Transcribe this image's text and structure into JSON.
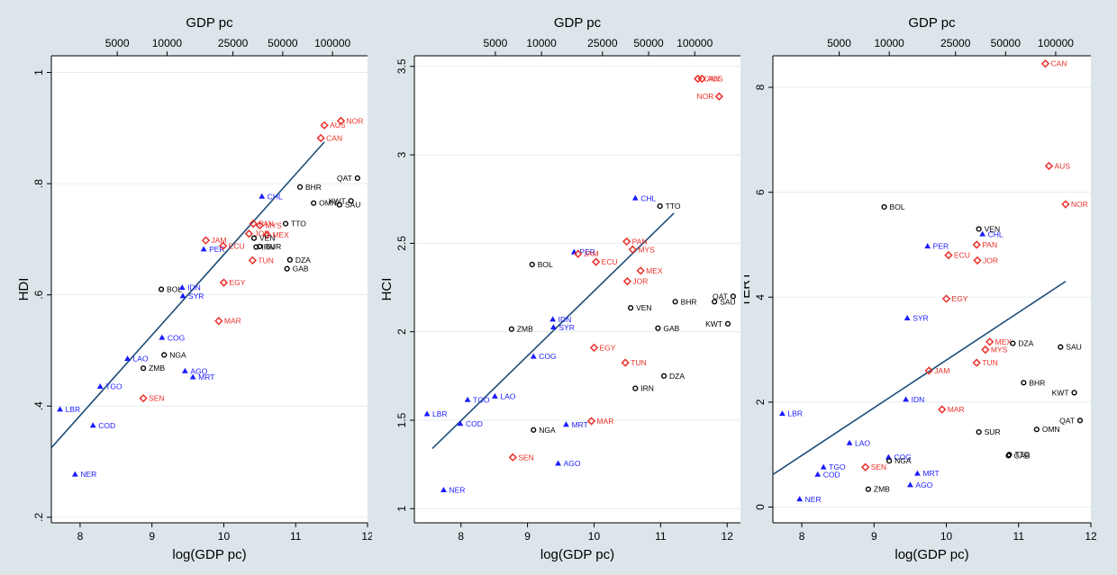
{
  "colors": {
    "group_triangle": "#1a1aff",
    "group_diamond": "#e8312a",
    "group_circle": "#000000",
    "fit_line": "#1f4e79",
    "panel_bg": "#ffffff",
    "frame_bg": "#dce6ea"
  },
  "chart_data": [
    {
      "type": "scatter",
      "xlabel": "log(GDP pc)",
      "ylabel": "HDI",
      "top_xlabel": "GDP pc",
      "xlim": [
        7.6,
        12
      ],
      "ylim": [
        0.19,
        1.03
      ],
      "xticks": [
        "8",
        "9",
        "10",
        "11",
        "12"
      ],
      "xtick_values": [
        8,
        9,
        10,
        11,
        12
      ],
      "yticks": [
        ".2",
        ".4",
        ".6",
        ".8",
        "1"
      ],
      "ytick_values": [
        0.2,
        0.4,
        0.6,
        0.8,
        1.0
      ],
      "top_ticks": [
        "5000",
        "10000",
        "25000",
        "50000",
        "100000"
      ],
      "top_tick_values": [
        8.517,
        9.21,
        10.127,
        10.82,
        11.513
      ],
      "fit": {
        "x": [
          7.6,
          11.4
        ],
        "y": [
          0.325,
          0.875
        ]
      },
      "series": [
        {
          "marker": "triangle",
          "points": [
            {
              "label": "LBR",
              "x": 7.72,
              "y": 0.394
            },
            {
              "label": "COD",
              "x": 8.18,
              "y": 0.365
            },
            {
              "label": "NER",
              "x": 7.93,
              "y": 0.277
            },
            {
              "label": "TGO",
              "x": 8.28,
              "y": 0.435
            },
            {
              "label": "LAO",
              "x": 8.66,
              "y": 0.485
            },
            {
              "label": "COG",
              "x": 9.14,
              "y": 0.523
            },
            {
              "label": "AGO",
              "x": 9.46,
              "y": 0.463
            },
            {
              "label": "MRT",
              "x": 9.57,
              "y": 0.452
            },
            {
              "label": "IDN",
              "x": 9.42,
              "y": 0.613
            },
            {
              "label": "SYR",
              "x": 9.43,
              "y": 0.598
            },
            {
              "label": "PER",
              "x": 9.72,
              "y": 0.682
            },
            {
              "label": "CHL",
              "x": 10.53,
              "y": 0.777
            }
          ]
        },
        {
          "marker": "diamond",
          "points": [
            {
              "label": "SEN",
              "x": 8.88,
              "y": 0.414
            },
            {
              "label": "MAR",
              "x": 9.93,
              "y": 0.553
            },
            {
              "label": "EGY",
              "x": 10.0,
              "y": 0.622
            },
            {
              "label": "JAM",
              "x": 9.75,
              "y": 0.698
            },
            {
              "label": "ECU",
              "x": 9.99,
              "y": 0.688
            },
            {
              "label": "TUN",
              "x": 10.4,
              "y": 0.662
            },
            {
              "label": "PAN",
              "x": 10.41,
              "y": 0.728
            },
            {
              "label": "JOR",
              "x": 10.35,
              "y": 0.71
            },
            {
              "label": "MEX",
              "x": 10.6,
              "y": 0.708
            },
            {
              "label": "MYS",
              "x": 10.5,
              "y": 0.725
            },
            {
              "label": "CAN",
              "x": 11.35,
              "y": 0.882
            },
            {
              "label": "AUS",
              "x": 11.4,
              "y": 0.905
            },
            {
              "label": "NOR",
              "x": 11.63,
              "y": 0.913
            }
          ]
        },
        {
          "marker": "circle",
          "points": [
            {
              "label": "BOL",
              "x": 9.13,
              "y": 0.61
            },
            {
              "label": "NGA",
              "x": 9.17,
              "y": 0.492
            },
            {
              "label": "ZMB",
              "x": 8.88,
              "y": 0.468
            },
            {
              "label": "VEN",
              "x": 10.42,
              "y": 0.702
            },
            {
              "label": "SUR",
              "x": 10.5,
              "y": 0.687
            },
            {
              "label": "IRN",
              "x": 10.45,
              "y": 0.686
            },
            {
              "label": "TTO",
              "x": 10.86,
              "y": 0.728
            },
            {
              "label": "DZA",
              "x": 10.92,
              "y": 0.663
            },
            {
              "label": "GAB",
              "x": 10.88,
              "y": 0.647
            },
            {
              "label": "BHR",
              "x": 11.06,
              "y": 0.794
            },
            {
              "label": "OMN",
              "x": 11.25,
              "y": 0.765
            },
            {
              "label": "SAU",
              "x": 11.61,
              "y": 0.762
            },
            {
              "label": "KWT",
              "x": 11.77,
              "y": 0.769
            },
            {
              "label": "QAT",
              "x": 11.86,
              "y": 0.81
            }
          ]
        }
      ]
    },
    {
      "type": "scatter",
      "xlabel": "log(GDP pc)",
      "ylabel": "HCI",
      "top_xlabel": "GDP pc",
      "xlim": [
        7.3,
        12.2
      ],
      "ylim": [
        0.92,
        3.56
      ],
      "xticks": [
        "8",
        "9",
        "10",
        "11",
        "12"
      ],
      "xtick_values": [
        8,
        9,
        10,
        11,
        12
      ],
      "yticks": [
        "1",
        "1.5",
        "2",
        "2.5",
        "3",
        "3.5"
      ],
      "ytick_values": [
        1.0,
        1.5,
        2.0,
        2.5,
        3.0,
        3.5
      ],
      "top_ticks": [
        "5000",
        "10000",
        "25000",
        "50000",
        "100000"
      ],
      "top_tick_values": [
        8.517,
        9.21,
        10.127,
        10.82,
        11.513
      ],
      "fit": {
        "x": [
          7.57,
          11.2
        ],
        "y": [
          1.34,
          2.67
        ]
      },
      "series": [
        {
          "marker": "triangle",
          "points": [
            {
              "label": "LBR",
              "x": 7.49,
              "y": 1.535
            },
            {
              "label": "COD",
              "x": 7.99,
              "y": 1.48
            },
            {
              "label": "NER",
              "x": 7.74,
              "y": 1.105
            },
            {
              "label": "TGO",
              "x": 8.1,
              "y": 1.615
            },
            {
              "label": "LAO",
              "x": 8.51,
              "y": 1.635
            },
            {
              "label": "COG",
              "x": 9.09,
              "y": 1.86
            },
            {
              "label": "IDN",
              "x": 9.38,
              "y": 2.07
            },
            {
              "label": "SYR",
              "x": 9.39,
              "y": 2.025
            },
            {
              "label": "PER",
              "x": 9.7,
              "y": 2.45
            },
            {
              "label": "MRT",
              "x": 9.58,
              "y": 1.475
            },
            {
              "label": "AGO",
              "x": 9.46,
              "y": 1.255
            },
            {
              "label": "CHL",
              "x": 10.62,
              "y": 2.755
            }
          ]
        },
        {
          "marker": "diamond",
          "points": [
            {
              "label": "SEN",
              "x": 8.78,
              "y": 1.29
            },
            {
              "label": "MAR",
              "x": 9.96,
              "y": 1.495
            },
            {
              "label": "EGY",
              "x": 10.0,
              "y": 1.91
            },
            {
              "label": "TUN",
              "x": 10.47,
              "y": 1.825
            },
            {
              "label": "ECU",
              "x": 10.03,
              "y": 2.395
            },
            {
              "label": "JAM",
              "x": 9.76,
              "y": 2.44
            },
            {
              "label": "PAN",
              "x": 10.49,
              "y": 2.51
            },
            {
              "label": "MYS",
              "x": 10.58,
              "y": 2.465
            },
            {
              "label": "MEX",
              "x": 10.7,
              "y": 2.345
            },
            {
              "label": "JOR",
              "x": 10.5,
              "y": 2.285
            },
            {
              "label": "CAN",
              "x": 11.56,
              "y": 3.43
            },
            {
              "label": "AUS",
              "x": 11.62,
              "y": 3.43
            },
            {
              "label": "NOR",
              "x": 11.88,
              "y": 3.33
            }
          ]
        },
        {
          "marker": "circle",
          "points": [
            {
              "label": "BOL",
              "x": 9.07,
              "y": 2.38
            },
            {
              "label": "ZMB",
              "x": 8.76,
              "y": 2.015
            },
            {
              "label": "NGA",
              "x": 9.09,
              "y": 1.445
            },
            {
              "label": "VEN",
              "x": 10.55,
              "y": 2.135
            },
            {
              "label": "BHR",
              "x": 11.22,
              "y": 2.17
            },
            {
              "label": "SAU",
              "x": 11.81,
              "y": 2.17
            },
            {
              "label": "KWT",
              "x": 12.01,
              "y": 2.045
            },
            {
              "label": "QAT",
              "x": 12.09,
              "y": 2.2
            },
            {
              "label": "GAB",
              "x": 10.96,
              "y": 2.02
            },
            {
              "label": "DZA",
              "x": 11.05,
              "y": 1.75
            },
            {
              "label": "IRN",
              "x": 10.62,
              "y": 1.68
            },
            {
              "label": "TTO",
              "x": 10.99,
              "y": 2.71
            }
          ]
        }
      ]
    },
    {
      "type": "scatter",
      "xlabel": "log(GDP pc)",
      "ylabel": "TERT",
      "top_xlabel": "GDP pc",
      "xlim": [
        7.6,
        12
      ],
      "ylim": [
        -0.3,
        8.6
      ],
      "xticks": [
        "8",
        "9",
        "10",
        "11",
        "12"
      ],
      "xtick_values": [
        8,
        9,
        10,
        11,
        12
      ],
      "yticks": [
        "0",
        "2",
        "4",
        "6",
        "8"
      ],
      "ytick_values": [
        0,
        2,
        4,
        6,
        8
      ],
      "top_ticks": [
        "5000",
        "10000",
        "25000",
        "50000",
        "100000"
      ],
      "top_tick_values": [
        8.517,
        9.21,
        10.127,
        10.82,
        11.513
      ],
      "fit": {
        "x": [
          7.6,
          11.65
        ],
        "y": [
          0.62,
          4.3
        ]
      },
      "series": [
        {
          "marker": "triangle",
          "points": [
            {
              "label": "LBR",
              "x": 7.73,
              "y": 1.78
            },
            {
              "label": "NER",
              "x": 7.97,
              "y": 0.15
            },
            {
              "label": "COD",
              "x": 8.22,
              "y": 0.62
            },
            {
              "label": "TGO",
              "x": 8.3,
              "y": 0.76
            },
            {
              "label": "LAO",
              "x": 8.66,
              "y": 1.22
            },
            {
              "label": "COG",
              "x": 9.2,
              "y": 0.95
            },
            {
              "label": "AGO",
              "x": 9.5,
              "y": 0.42
            },
            {
              "label": "MRT",
              "x": 9.6,
              "y": 0.64
            },
            {
              "label": "IDN",
              "x": 9.44,
              "y": 2.05
            },
            {
              "label": "SYR",
              "x": 9.46,
              "y": 3.6
            },
            {
              "label": "PER",
              "x": 9.74,
              "y": 4.97
            },
            {
              "label": "CHL",
              "x": 10.5,
              "y": 5.2
            }
          ]
        },
        {
          "marker": "diamond",
          "points": [
            {
              "label": "SEN",
              "x": 8.88,
              "y": 0.76
            },
            {
              "label": "MAR",
              "x": 9.94,
              "y": 1.86
            },
            {
              "label": "JAM",
              "x": 9.76,
              "y": 2.6
            },
            {
              "label": "EGY",
              "x": 10.0,
              "y": 3.97
            },
            {
              "label": "ECU",
              "x": 10.03,
              "y": 4.8
            },
            {
              "label": "TUN",
              "x": 10.42,
              "y": 2.75
            },
            {
              "label": "MYS",
              "x": 10.54,
              "y": 3.0
            },
            {
              "label": "MEX",
              "x": 10.6,
              "y": 3.15
            },
            {
              "label": "JOR",
              "x": 10.43,
              "y": 4.7
            },
            {
              "label": "PAN",
              "x": 10.42,
              "y": 5.0
            },
            {
              "label": "CAN",
              "x": 11.37,
              "y": 8.45
            },
            {
              "label": "AUS",
              "x": 11.42,
              "y": 6.5
            },
            {
              "label": "NOR",
              "x": 11.65,
              "y": 5.77
            }
          ]
        },
        {
          "marker": "circle",
          "points": [
            {
              "label": "BOL",
              "x": 9.14,
              "y": 5.72
            },
            {
              "label": "ZMB",
              "x": 8.92,
              "y": 0.34
            },
            {
              "label": "NGA",
              "x": 9.21,
              "y": 0.88
            },
            {
              "label": "VEN",
              "x": 10.45,
              "y": 5.3
            },
            {
              "label": "SUR",
              "x": 10.45,
              "y": 1.43
            },
            {
              "label": "TTO",
              "x": 10.87,
              "y": 1.0
            },
            {
              "label": "GAB",
              "x": 10.86,
              "y": 0.98
            },
            {
              "label": "DZA",
              "x": 10.92,
              "y": 3.12
            },
            {
              "label": "BHR",
              "x": 11.07,
              "y": 2.37
            },
            {
              "label": "OMN",
              "x": 11.25,
              "y": 1.48
            },
            {
              "label": "SAU",
              "x": 11.58,
              "y": 3.05
            },
            {
              "label": "KWT",
              "x": 11.77,
              "y": 2.18
            },
            {
              "label": "QAT",
              "x": 11.85,
              "y": 1.65
            }
          ]
        }
      ]
    }
  ]
}
